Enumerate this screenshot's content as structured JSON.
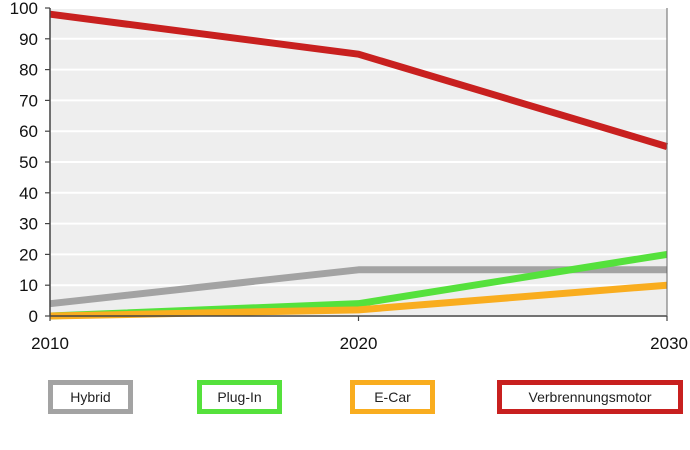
{
  "chart_data": {
    "type": "line",
    "x": [
      2010,
      2020,
      2030
    ],
    "xlim": [
      2010,
      2030
    ],
    "ylim": [
      0,
      100
    ],
    "x_ticks": [
      "2010",
      "2020",
      "2030"
    ],
    "y_ticks": [
      "0",
      "10",
      "20",
      "30",
      "40",
      "50",
      "60",
      "70",
      "80",
      "90",
      "100"
    ],
    "grid": "horizontal",
    "legend_position": "bottom",
    "series": [
      {
        "name": "Hybrid",
        "values": [
          4,
          15,
          15
        ],
        "color": "#a3a3a3"
      },
      {
        "name": "Plug-In",
        "values": [
          0,
          4,
          20
        ],
        "color": "#55e13c"
      },
      {
        "name": "E-Car",
        "values": [
          0,
          2,
          10
        ],
        "color": "#f9ad1f"
      },
      {
        "name": "Verbrennungsmotor",
        "values": [
          98,
          85,
          55
        ],
        "color": "#c8201f"
      }
    ]
  }
}
